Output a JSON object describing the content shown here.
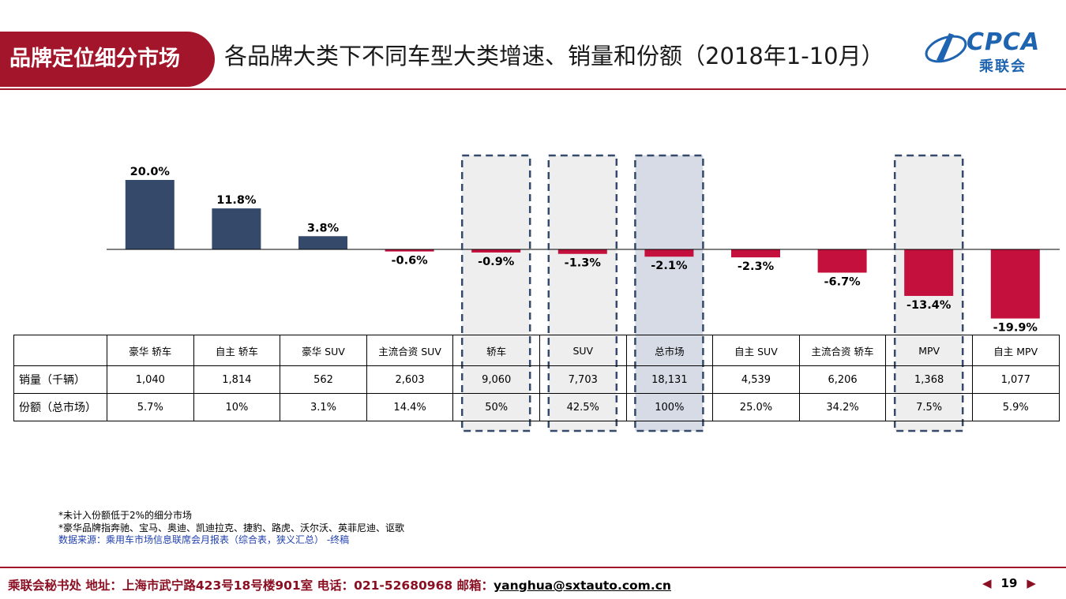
{
  "header": {
    "section": "品牌定位细分市场",
    "title": "各品牌大类下不同车型大类增速、销量和份额（2018年1-10月）",
    "logo_en": "CPCA",
    "logo_cn": "乘联会"
  },
  "colors": {
    "brand": "#a3152a",
    "positive": "#354a6b",
    "negative": "#c4103c",
    "highlight": "#d6dbe6",
    "box": "#eeeeee",
    "dash": "#354a6b"
  },
  "chart_data": {
    "type": "bar",
    "categories": [
      "豪华 轿车",
      "自主 轿车",
      "豪华 SUV",
      "主流合资 SUV",
      "轿车",
      "SUV",
      "总市场",
      "自主 SUV",
      "主流合资 轿车",
      "MPV",
      "自主 MPV"
    ],
    "values": [
      20.0,
      11.8,
      3.8,
      -0.6,
      -0.9,
      -1.3,
      -2.1,
      -2.3,
      -6.7,
      -13.4,
      -19.9
    ],
    "value_labels": [
      "20.0%",
      "11.8%",
      "3.8%",
      "-0.6%",
      "-0.9%",
      "-1.3%",
      "-2.1%",
      "-2.3%",
      "-6.7%",
      "-13.4%",
      "-19.9%"
    ],
    "highlighted": [
      false,
      false,
      false,
      false,
      true,
      true,
      true,
      false,
      false,
      true,
      false
    ],
    "strong_highlight": [
      false,
      false,
      false,
      false,
      false,
      false,
      true,
      false,
      false,
      false,
      false
    ],
    "ylim": [
      -20,
      20
    ]
  },
  "table": {
    "rows": [
      {
        "label": "销量（千辆）",
        "values": [
          "1,040",
          "1,814",
          "562",
          "2,603",
          "9,060",
          "7,703",
          "18,131",
          "4,539",
          "6,206",
          "1,368",
          "1,077"
        ]
      },
      {
        "label": "份额（总市场）",
        "values": [
          "5.7%",
          "10%",
          "3.1%",
          "14.4%",
          "50%",
          "42.5%",
          "100%",
          "25.0%",
          "34.2%",
          "7.5%",
          "5.9%"
        ]
      }
    ]
  },
  "notes": {
    "line1": "*未计入份额低于2%的细分市场",
    "line2": "*豪华品牌指奔驰、宝马、奥迪、凯迪拉克、捷豹、路虎、沃尔沃、英菲尼迪、讴歌",
    "source": "数据来源：乘用车市场信息联席会月报表（综合表，狭义汇总） -终稿"
  },
  "footer": {
    "text": "乘联会秘书处  地址：上海市武宁路423号18号楼901室  电话：021-52680968  邮箱：",
    "email": "yanghua@sxtauto.com.cn",
    "page": "19",
    "prev": "◀",
    "next": "▶"
  }
}
